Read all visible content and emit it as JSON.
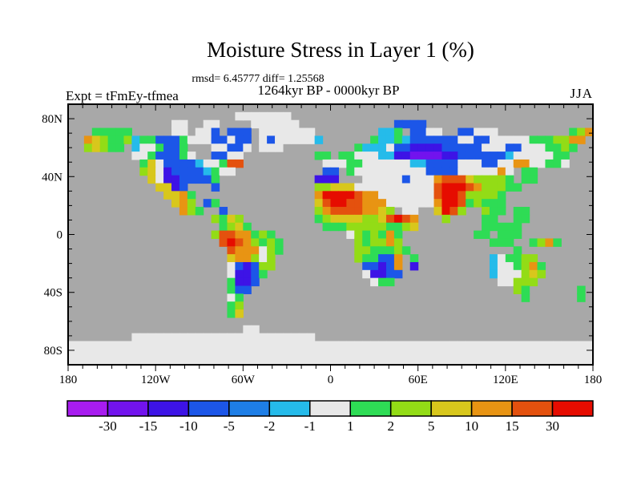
{
  "title": "Moisture Stress in Layer 1 (%)",
  "stats_line": "rmsd= 6.45777 diff= 1.25568",
  "period_line": "1264kyr BP - 0000kyr BP",
  "expt_label": "Expt = tFmEy-tfmea",
  "season_label": "JJA",
  "chart_data": {
    "type": "heatmap",
    "projection": "equirectangular world map, filled contours over land, oceans masked gray",
    "title": "Moisture Stress in Layer 1 (%)",
    "subtitle": "rmsd= 6.45777 diff= 1.25568",
    "rmsd": 6.45777,
    "diff": 1.25568,
    "comparison": "1264kyr BP - 0000kyr BP",
    "experiment": "Expt = tFmEy-tfmea",
    "season": "JJA",
    "units": "%",
    "x_axis": {
      "range_deg": [
        -180,
        180
      ],
      "minor_tick_deg": 10,
      "major_tick_deg": 60,
      "ticks": [
        {
          "v": -180,
          "label": "180"
        },
        {
          "v": -120,
          "label": "120W"
        },
        {
          "v": -60,
          "label": "60W"
        },
        {
          "v": 0,
          "label": "0"
        },
        {
          "v": 60,
          "label": "60E"
        },
        {
          "v": 120,
          "label": "120E"
        },
        {
          "v": 180,
          "label": "180"
        }
      ]
    },
    "y_axis": {
      "range_deg": [
        -90,
        90
      ],
      "minor_tick_deg": 10,
      "major_tick_deg": 40,
      "ticks": [
        {
          "v": 80,
          "label": "80N"
        },
        {
          "v": 40,
          "label": "40N"
        },
        {
          "v": 0,
          "label": "0"
        },
        {
          "v": -40,
          "label": "40S"
        },
        {
          "v": -80,
          "label": "80S"
        }
      ]
    },
    "colorbar": {
      "levels": [
        -30,
        -15,
        -10,
        -5,
        -2,
        -1,
        1,
        2,
        5,
        10,
        15,
        30
      ],
      "boundary_labels": [
        "-30",
        "-15",
        "-10",
        "-5",
        "-2",
        "-1",
        "1",
        "2",
        "5",
        "10",
        "15",
        "30"
      ],
      "colors": [
        "#a81cf0",
        "#7213ee",
        "#3d13e6",
        "#1c56e8",
        "#1e7ee6",
        "#25bbea",
        "#e8e8e8",
        "#2edc55",
        "#93dc16",
        "#d8c71c",
        "#e89413",
        "#e4510e",
        "#e60c00"
      ]
    },
    "ocean_color": "#a8a8a8",
    "map": {
      "cols": 66,
      "rows": 33,
      "legend": "each char = ~5.45 deg cell; '.'=ocean/no data; 0-9,a,b,c = colorbar bins low(purple,negative) to high(red,positive); 6 = near-zero band (also polar ice caps)",
      "palette": {
        ".": "#a8a8a8",
        "0": "#a81cf0",
        "1": "#7213ee",
        "2": "#3d13e6",
        "3": "#1c56e8",
        "4": "#1e7ee6",
        "5": "#25bbea",
        "6": "#e8e8e8",
        "7": "#2edc55",
        "8": "#93dc16",
        "9": "#d8c71c",
        "a": "#e89413",
        "b": "#e4510e",
        "c": "#e60c00"
      },
      "rows_data": [
        "..................................................................",
        ".....................6666666......................................",
        ".............66..66....666666............3333.....................",
        "...77777.....66.663.333.6666666........557.3366..33666.........78aa",
        "..a98778577333766633633.63666665......755753333336633666667778 8aa..",
        "..89877.5667337...66336.666.........75556332222333336663366677 87..",
        "........66733376..3366.........77.77666552211112233333356666677...",
        ".........79633335667bb..........666776666665533336663366aa66776....",
        ".........896233335766...........33.7666666666333366666a6.77.......",
        "..........962233337............222...666663666abbb988887.77.......",
        "...........9923...3............889996666666666bcccba88877.........",
        "............99a7...............accccbaa6666666bccb88887...........",
        ".............9a8.37............9bccbbaaa666666accb78777...........",
        "..............a87..3...........8abbbbaa98.66..9cb8..877.77........",
        "..................8798.........789999889bcba...8....77..77........",
        "...................7897.........77788888778 9........77777........",
        "..................8bbaa787.........68787a7.........77.777.........",
        "...................bcba8787.........8788a8...........777..78a7....",
        "....................baaa687.........8877787.............7.........",
        "....................9aa868..........87733a.7.........567788.......",
        "....................632388...........3323a.2.........56678a7......",
        "....................62237............62233...........5666898......",
        "....................7223..............677.............66888.......",
        "....................733.................................87......7.",
        "....................67...................................7......7.",
        "....................78............................................",
        "....................79............................................",
        "..................................................................",
        "......................66..........................................",
        "........66666666666666666666666...................................",
        "666666666666666666666666666666666666666666666666666666666666666666",
        "666666666666666666666666666666666666666666666666666666666666666666",
        "666666666666666666666666666666666666666666666666666666666666666666"
      ]
    }
  }
}
